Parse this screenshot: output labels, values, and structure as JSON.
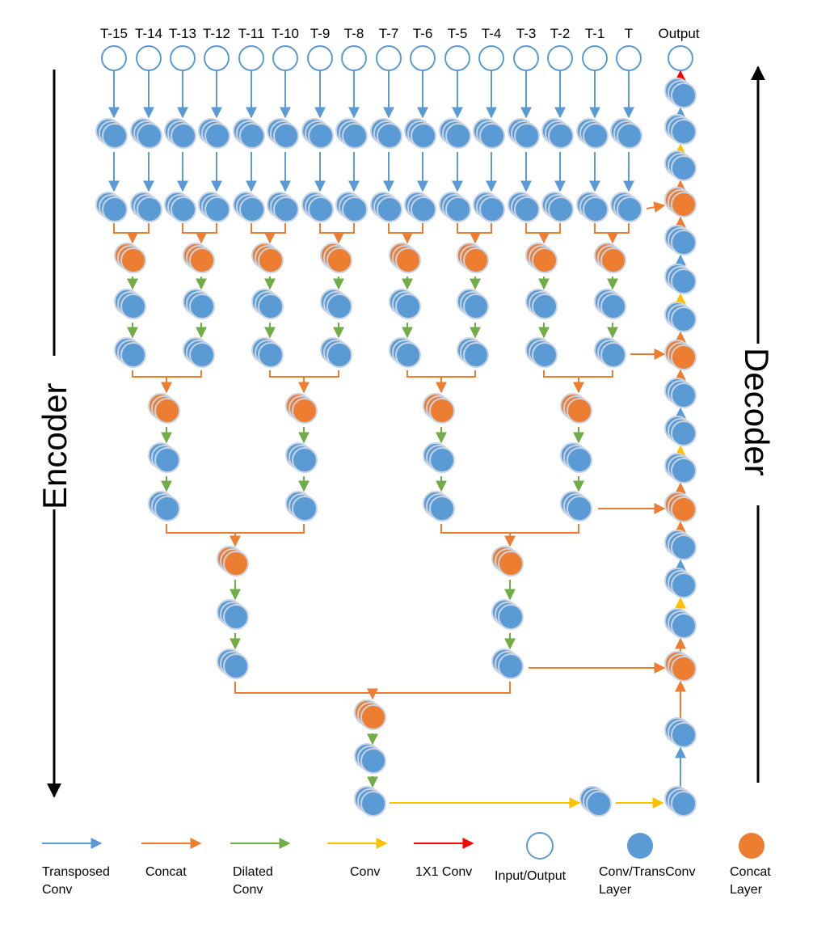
{
  "inputs": [
    "T-15",
    "T-14",
    "T-13",
    "T-12",
    "T-11",
    "T-10",
    "T-9",
    "T-8",
    "T-7",
    "T-6",
    "T-5",
    "T-4",
    "T-3",
    "T-2",
    "T-1",
    "T"
  ],
  "output_label": "Output",
  "encoder_label": "Encoder",
  "decoder_label": "Decoder",
  "colors": {
    "transposed": "#5b9bd5",
    "concat": "#ed7d31",
    "dilated": "#70ad47",
    "conv": "#ffc000",
    "one_by_one": "#ff0000",
    "node_blue": "#5b9bd5",
    "node_orange": "#ed7d31"
  },
  "legend": [
    {
      "label_lines": [
        "Transposed",
        "Conv"
      ],
      "kind": "arrow",
      "color": "transposed"
    },
    {
      "label_lines": [
        "Concat"
      ],
      "kind": "arrow",
      "color": "concat"
    },
    {
      "label_lines": [
        "Dilated",
        "Conv"
      ],
      "kind": "arrow",
      "color": "dilated"
    },
    {
      "label_lines": [
        "Conv"
      ],
      "kind": "arrow",
      "color": "conv"
    },
    {
      "label_lines": [
        "1X1 Conv"
      ],
      "kind": "arrow",
      "color": "one_by_one"
    },
    {
      "label_lines": [
        "Input/Output"
      ],
      "kind": "io"
    },
    {
      "label_lines": [
        "Conv/TransConv",
        "Layer"
      ],
      "kind": "blue"
    },
    {
      "label_lines": [
        "Concat",
        "Layer"
      ],
      "kind": "orange"
    }
  ]
}
